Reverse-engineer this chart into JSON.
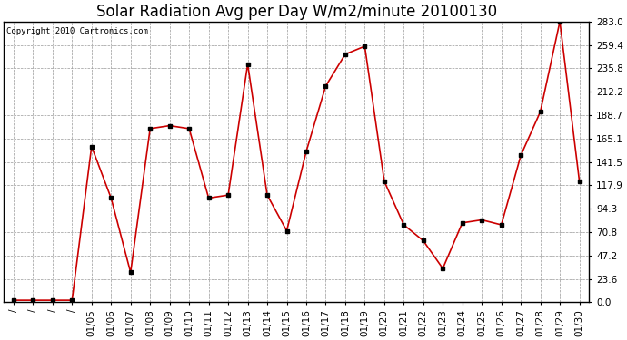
{
  "title": "Solar Radiation Avg per Day W/m2/minute 20100130",
  "copyright": "Copyright 2010 Cartronics.com",
  "dates": [
    "",
    "",
    "",
    "",
    "01/05",
    "01/06",
    "01/07",
    "01/08",
    "01/09",
    "01/10",
    "01/11",
    "01/12",
    "01/13",
    "01/14",
    "01/15",
    "01/16",
    "01/17",
    "01/18",
    "01/19",
    "01/20",
    "01/21",
    "01/22",
    "01/23",
    "01/24",
    "01/25",
    "01/26",
    "01/27",
    "01/28",
    "01/29",
    "01/30"
  ],
  "values": [
    2.0,
    2.0,
    2.0,
    2.0,
    157.0,
    105.0,
    30.0,
    175.0,
    178.0,
    175.0,
    105.0,
    108.0,
    240.0,
    108.0,
    72.0,
    152.0,
    218.0,
    250.0,
    258.0,
    122.0,
    78.0,
    62.0,
    34.0,
    80.0,
    83.0,
    78.0,
    148.0,
    192.0,
    283.0,
    122.0
  ],
  "line_color": "#cc0000",
  "marker_color": "#000000",
  "bg_color": "#ffffff",
  "plot_bg_color": "#ffffff",
  "grid_color": "#999999",
  "ylim": [
    0.0,
    283.0
  ],
  "yticks": [
    0.0,
    23.6,
    47.2,
    70.8,
    94.3,
    117.9,
    141.5,
    165.1,
    188.7,
    212.2,
    235.8,
    259.4,
    283.0
  ],
  "title_fontsize": 12,
  "label_fontsize": 7.5,
  "fig_width": 6.9,
  "fig_height": 3.75
}
